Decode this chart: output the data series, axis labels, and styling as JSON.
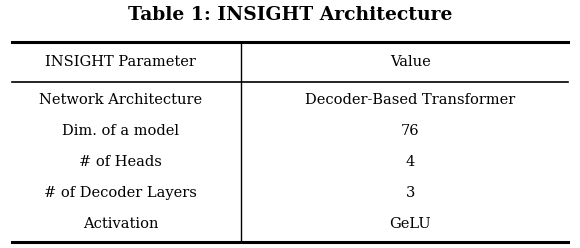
{
  "title": "Table 1: INSIGHT Architecture",
  "col1_header": "INSIGHT Parameter",
  "col2_header": "Value",
  "rows": [
    [
      "Network Architecture",
      "Decoder-Based Transformer"
    ],
    [
      "Dim. of a model",
      "76"
    ],
    [
      "# of Heads",
      "4"
    ],
    [
      "# of Decoder Layers",
      "3"
    ],
    [
      "Activation",
      "GeLU"
    ]
  ],
  "bg_color": "#ffffff",
  "text_color": "#000000",
  "title_fontsize": 13.5,
  "header_fontsize": 10.5,
  "body_fontsize": 10.5,
  "col_split": 0.415,
  "fig_width": 5.8,
  "fig_height": 2.48,
  "dpi": 100
}
